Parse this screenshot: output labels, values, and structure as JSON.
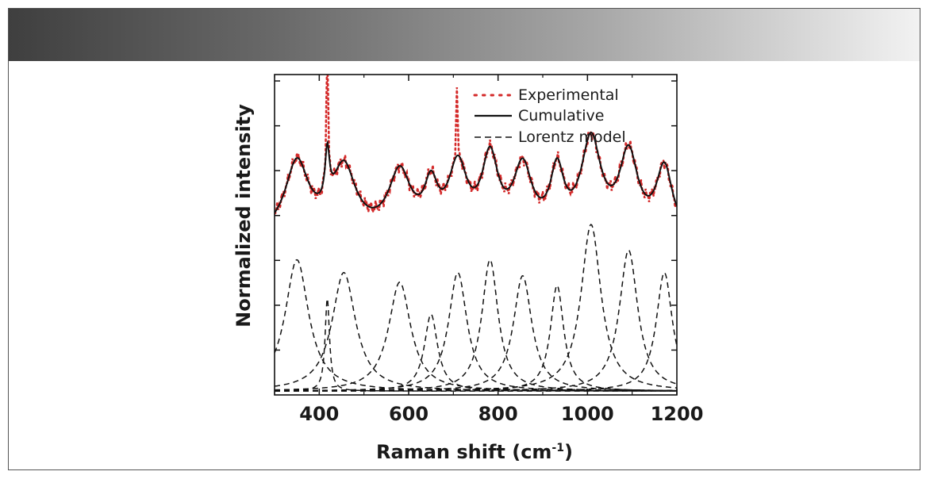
{
  "chart_data": {
    "type": "line",
    "title": "",
    "xlabel": "Raman shift (cm-1)",
    "xlabel_main": "Raman shift (cm",
    "xlabel_sup": "-1",
    "xlabel_close": ")",
    "ylabel": "Normalized intensity",
    "xlim": [
      300,
      1200
    ],
    "ylim": [
      0,
      1
    ],
    "x_ticks": [
      400,
      600,
      800,
      1000,
      1200
    ],
    "x_tick_labels": [
      "400",
      "600",
      "800",
      "1000",
      "1200"
    ],
    "y_ticks_unlabeled": true,
    "legend_position": "top-right",
    "legend": [
      {
        "name": "Experimental",
        "style": "dotted",
        "color": "#d42a2a"
      },
      {
        "name": "Cumulative",
        "style": "solid",
        "color": "#111111"
      },
      {
        "name": "Lorentz model",
        "style": "dashed",
        "color": "#111111"
      }
    ],
    "baseline": 0.72,
    "lorentz_components": [
      {
        "center": 350,
        "amplitude": 0.41,
        "hwhm": 32
      },
      {
        "center": 418,
        "amplitude": 0.29,
        "hwhm": 6
      },
      {
        "center": 455,
        "amplitude": 0.37,
        "hwhm": 32
      },
      {
        "center": 580,
        "amplitude": 0.34,
        "hwhm": 30
      },
      {
        "center": 650,
        "amplitude": 0.24,
        "hwhm": 18
      },
      {
        "center": 710,
        "amplitude": 0.37,
        "hwhm": 25
      },
      {
        "center": 782,
        "amplitude": 0.41,
        "hwhm": 22
      },
      {
        "center": 855,
        "amplitude": 0.36,
        "hwhm": 25
      },
      {
        "center": 932,
        "amplitude": 0.33,
        "hwhm": 18
      },
      {
        "center": 1008,
        "amplitude": 0.52,
        "hwhm": 27
      },
      {
        "center": 1092,
        "amplitude": 0.44,
        "hwhm": 25
      },
      {
        "center": 1172,
        "amplitude": 0.37,
        "hwhm": 22
      }
    ],
    "experimental_spikes": [
      {
        "x": 418,
        "value": 1.06
      },
      {
        "x": 708,
        "value": 0.96
      },
      {
        "x": 1005,
        "value": 0.8
      }
    ]
  }
}
